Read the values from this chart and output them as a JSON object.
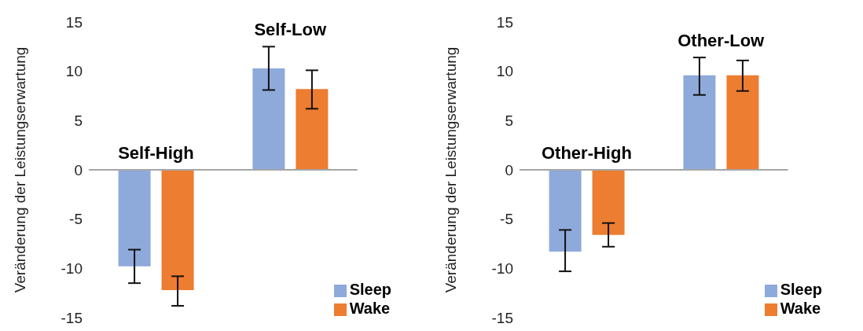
{
  "chart_data": [
    {
      "type": "bar",
      "categories": [
        "Self-High",
        "Self-Low"
      ],
      "ylabel": "Veränderung der Leistungserwartung",
      "ylim": [
        -15,
        15
      ],
      "yticks": [
        -15,
        -10,
        -5,
        0,
        5,
        10,
        15
      ],
      "ref_lines": [
        {
          "axis": "y",
          "value": 0,
          "color": "#a6a6a6"
        }
      ],
      "legend": "bottom right",
      "series": [
        {
          "name": "Sleep",
          "color": "#8eaadb",
          "values": [
            -9.8,
            10.3
          ],
          "errors": [
            [
              -11.5,
              -8.1
            ],
            [
              8.1,
              12.5
            ]
          ]
        },
        {
          "name": "Wake",
          "color": "#ed7d31",
          "values": [
            -12.2,
            8.2
          ],
          "errors": [
            [
              -13.8,
              -10.8
            ],
            [
              6.2,
              10.1
            ]
          ]
        }
      ]
    },
    {
      "type": "bar",
      "categories": [
        "Other-High",
        "Other-Low"
      ],
      "ylabel": "Veränderung der Leistungserwartung",
      "ylim": [
        -15,
        15
      ],
      "yticks": [
        -15,
        -10,
        -5,
        0,
        5,
        10,
        15
      ],
      "ref_lines": [
        {
          "axis": "y",
          "value": 0,
          "color": "#a6a6a6"
        }
      ],
      "legend": "bottom right",
      "series": [
        {
          "name": "Sleep",
          "color": "#8eaadb",
          "values": [
            -8.3,
            9.6
          ],
          "errors": [
            [
              -10.3,
              -6.1
            ],
            [
              7.6,
              11.4
            ]
          ]
        },
        {
          "name": "Wake",
          "color": "#ed7d31",
          "values": [
            -6.6,
            9.6
          ],
          "errors": [
            [
              -7.8,
              -5.4
            ],
            [
              8.0,
              11.1
            ]
          ]
        }
      ]
    }
  ]
}
